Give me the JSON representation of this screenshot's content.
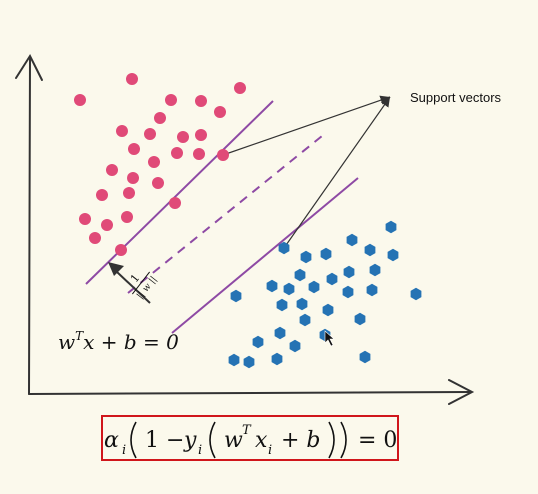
{
  "labels": {
    "support_vectors": "Support vectors",
    "hyperplane_eq": "w",
    "hyperplane_sup": "T",
    "hyperplane_rest": "x + b = 0",
    "margin_num": "1",
    "margin_den": "|| w ||"
  },
  "formula": {
    "alpha": "α",
    "alpha_sub": "i",
    "one_minus": "1 −",
    "y": "y",
    "y_sub": "i",
    "w": "w",
    "w_sup": "T",
    "x": "x",
    "x_sub": "i",
    "plus_b": "+ b",
    "eq_zero": "= 0"
  },
  "colors": {
    "background": "#fbf9ec",
    "positive_class": "#e04a78",
    "negative_class": "#2573b4",
    "hyperplane": "#8e4aa4",
    "axes": "#333333",
    "formula_border": "#d0161b"
  },
  "icons": [
    "mouse-cursor-icon"
  ]
}
